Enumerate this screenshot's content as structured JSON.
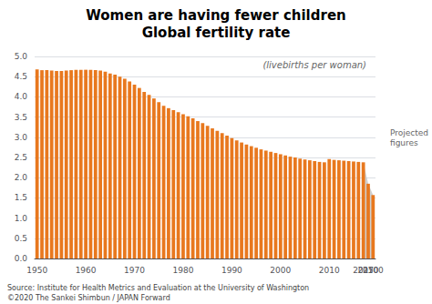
{
  "chart_data": {
    "type": "bar",
    "title": "Women are having fewer children",
    "subtitle": "Global fertility rate",
    "annotations": [
      "(livebirths per woman)",
      "Projected\nfigures"
    ],
    "source": [
      "Source: Institute for Health Metrics and Evaluation at the University of Washington",
      "©2020 The Sankei Shimbun / JAPAN Forward"
    ],
    "categories": [
      "1950",
      null,
      null,
      null,
      null,
      null,
      null,
      null,
      null,
      null,
      "1960",
      null,
      null,
      null,
      null,
      null,
      null,
      null,
      null,
      null,
      "1970",
      null,
      null,
      null,
      null,
      null,
      null,
      null,
      null,
      null,
      "1980",
      null,
      null,
      null,
      null,
      null,
      null,
      null,
      null,
      null,
      "1990",
      null,
      null,
      null,
      null,
      null,
      null,
      null,
      null,
      null,
      "2000",
      null,
      null,
      null,
      null,
      null,
      null,
      null,
      null,
      null,
      "2010",
      null,
      null,
      null,
      null,
      null,
      null,
      "2017",
      "2050",
      "2100"
    ],
    "series": [
      {
        "type": "bar",
        "color": "#E8781E",
        "values": [
          4.68,
          4.66,
          4.66,
          4.65,
          4.64,
          4.64,
          4.65,
          4.66,
          4.67,
          4.67,
          4.67,
          4.67,
          4.66,
          4.65,
          4.62,
          4.58,
          4.55,
          4.5,
          4.45,
          4.38,
          4.3,
          4.22,
          4.12,
          4.05,
          3.96,
          3.87,
          3.78,
          3.72,
          3.67,
          3.62,
          3.57,
          3.52,
          3.47,
          3.4,
          3.35,
          3.28,
          3.22,
          3.16,
          3.1,
          3.04,
          2.98,
          2.92,
          2.87,
          2.82,
          2.78,
          2.74,
          2.7,
          2.67,
          2.64,
          2.61,
          2.58,
          2.55,
          2.52,
          2.5,
          2.47,
          2.45,
          2.43,
          2.41,
          2.39,
          2.38,
          2.46,
          2.44,
          2.43,
          2.42,
          2.41,
          2.4,
          2.39,
          2.38,
          1.85,
          1.57
        ]
      },
      {
        "type": "area",
        "color": "#C8C8C8",
        "values": [
          null,
          null,
          null,
          null,
          null,
          null,
          null,
          null,
          null,
          null,
          null,
          null,
          null,
          null,
          null,
          null,
          null,
          null,
          null,
          null,
          null,
          null,
          null,
          null,
          null,
          null,
          null,
          null,
          null,
          null,
          null,
          null,
          null,
          null,
          null,
          null,
          null,
          null,
          null,
          null,
          null,
          null,
          null,
          null,
          null,
          null,
          null,
          null,
          null,
          null,
          null,
          null,
          null,
          null,
          null,
          null,
          null,
          null,
          null,
          null,
          null,
          null,
          null,
          null,
          null,
          null,
          null,
          2.38,
          1.85,
          1.57
        ]
      }
    ],
    "ylim": [
      0,
      5.0
    ],
    "yticks": [
      {
        "value": 0,
        "label": "0.0"
      },
      0.5,
      {
        "value": 1,
        "label": "1.0"
      },
      1.5,
      {
        "value": 2,
        "label": "2.0"
      },
      2.5,
      {
        "value": 3,
        "label": "3.0"
      },
      3.5,
      {
        "value": 4,
        "label": "4.0"
      },
      4.5,
      {
        "value": 5,
        "label": "5.0"
      }
    ],
    "grid": true
  }
}
